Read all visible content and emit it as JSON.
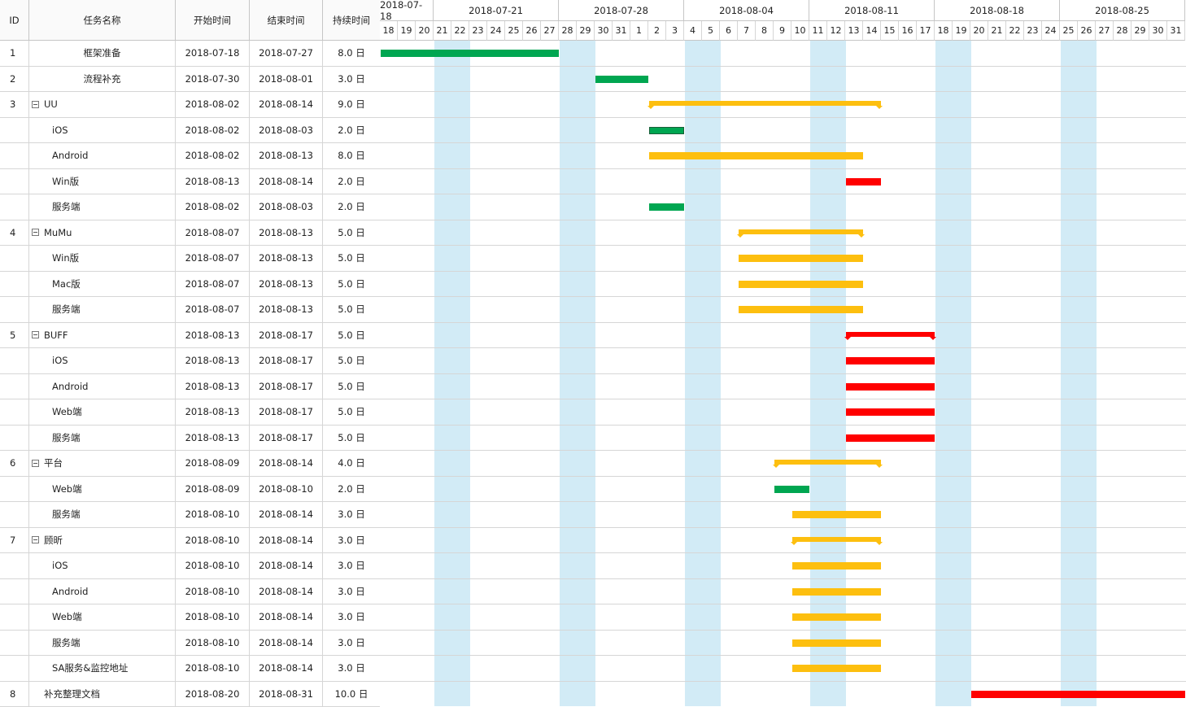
{
  "colors": {
    "green": "#00a651",
    "yellow": "#fdbf0f",
    "red": "#ff0000",
    "weekend": "#d2ebf6"
  },
  "header": {
    "id": "ID",
    "name": "任务名称",
    "start": "开始时间",
    "end": "结束时间",
    "duration": "持续时间"
  },
  "timeline": {
    "start_date": "2018-07-18",
    "weeks": [
      "2018-07-18",
      "2018-07-21",
      "2018-07-28",
      "2018-08-04",
      "2018-08-11",
      "2018-08-18",
      "2018-08-25"
    ],
    "days": [
      "18",
      "19",
      "20",
      "21",
      "22",
      "23",
      "24",
      "25",
      "26",
      "27",
      "28",
      "29",
      "30",
      "31",
      "1",
      "2",
      "3",
      "4",
      "5",
      "6",
      "7",
      "8",
      "9",
      "10",
      "11",
      "12",
      "13",
      "14",
      "15",
      "16",
      "17",
      "18",
      "19",
      "20",
      "21",
      "22",
      "23",
      "24",
      "25",
      "26",
      "27",
      "28",
      "29",
      "30",
      "31"
    ]
  },
  "tasks": [
    {
      "id": "1",
      "name": "框架准备",
      "start": "2018-07-18",
      "end": "2018-07-27",
      "duration": "8.0 日",
      "level": "top",
      "center": true,
      "summary": false,
      "color": "green"
    },
    {
      "id": "2",
      "name": "流程补充",
      "start": "2018-07-30",
      "end": "2018-08-01",
      "duration": "3.0 日",
      "level": "top",
      "center": true,
      "summary": false,
      "color": "green"
    },
    {
      "id": "3",
      "name": "UU",
      "start": "2018-08-02",
      "end": "2018-08-14",
      "duration": "9.0 日",
      "level": "top",
      "center": false,
      "summary": true,
      "color": "yellow"
    },
    {
      "id": "",
      "name": "iOS",
      "start": "2018-08-02",
      "end": "2018-08-03",
      "duration": "2.0 日",
      "level": "child",
      "summary": false,
      "color": "green",
      "outline": true
    },
    {
      "id": "",
      "name": "Android",
      "start": "2018-08-02",
      "end": "2018-08-13",
      "duration": "8.0 日",
      "level": "child",
      "summary": false,
      "color": "yellow"
    },
    {
      "id": "",
      "name": "Win版",
      "start": "2018-08-13",
      "end": "2018-08-14",
      "duration": "2.0 日",
      "level": "child",
      "summary": false,
      "color": "red"
    },
    {
      "id": "",
      "name": "服务端",
      "start": "2018-08-02",
      "end": "2018-08-03",
      "duration": "2.0 日",
      "level": "child",
      "summary": false,
      "color": "green"
    },
    {
      "id": "4",
      "name": "MuMu",
      "start": "2018-08-07",
      "end": "2018-08-13",
      "duration": "5.0 日",
      "level": "top",
      "center": false,
      "summary": true,
      "color": "yellow"
    },
    {
      "id": "",
      "name": "Win版",
      "start": "2018-08-07",
      "end": "2018-08-13",
      "duration": "5.0 日",
      "level": "child",
      "summary": false,
      "color": "yellow"
    },
    {
      "id": "",
      "name": "Mac版",
      "start": "2018-08-07",
      "end": "2018-08-13",
      "duration": "5.0 日",
      "level": "child",
      "summary": false,
      "color": "yellow"
    },
    {
      "id": "",
      "name": "服务端",
      "start": "2018-08-07",
      "end": "2018-08-13",
      "duration": "5.0 日",
      "level": "child",
      "summary": false,
      "color": "yellow"
    },
    {
      "id": "5",
      "name": "BUFF",
      "start": "2018-08-13",
      "end": "2018-08-17",
      "duration": "5.0 日",
      "level": "top",
      "center": false,
      "summary": true,
      "color": "red"
    },
    {
      "id": "",
      "name": "iOS",
      "start": "2018-08-13",
      "end": "2018-08-17",
      "duration": "5.0 日",
      "level": "child",
      "summary": false,
      "color": "red"
    },
    {
      "id": "",
      "name": "Android",
      "start": "2018-08-13",
      "end": "2018-08-17",
      "duration": "5.0 日",
      "level": "child",
      "summary": false,
      "color": "red"
    },
    {
      "id": "",
      "name": "Web端",
      "start": "2018-08-13",
      "end": "2018-08-17",
      "duration": "5.0 日",
      "level": "child",
      "summary": false,
      "color": "red"
    },
    {
      "id": "",
      "name": "服务端",
      "start": "2018-08-13",
      "end": "2018-08-17",
      "duration": "5.0 日",
      "level": "child",
      "summary": false,
      "color": "red"
    },
    {
      "id": "6",
      "name": "平台",
      "start": "2018-08-09",
      "end": "2018-08-14",
      "duration": "4.0 日",
      "level": "top",
      "center": false,
      "summary": true,
      "color": "yellow"
    },
    {
      "id": "",
      "name": "Web端",
      "start": "2018-08-09",
      "end": "2018-08-10",
      "duration": "2.0 日",
      "level": "child",
      "summary": false,
      "color": "green"
    },
    {
      "id": "",
      "name": "服务端",
      "start": "2018-08-10",
      "end": "2018-08-14",
      "duration": "3.0 日",
      "level": "child",
      "summary": false,
      "color": "yellow"
    },
    {
      "id": "7",
      "name": "顾昕",
      "start": "2018-08-10",
      "end": "2018-08-14",
      "duration": "3.0 日",
      "level": "top",
      "center": false,
      "summary": true,
      "color": "yellow"
    },
    {
      "id": "",
      "name": "iOS",
      "start": "2018-08-10",
      "end": "2018-08-14",
      "duration": "3.0 日",
      "level": "child",
      "summary": false,
      "color": "yellow"
    },
    {
      "id": "",
      "name": "Android",
      "start": "2018-08-10",
      "end": "2018-08-14",
      "duration": "3.0 日",
      "level": "child",
      "summary": false,
      "color": "yellow"
    },
    {
      "id": "",
      "name": "Web端",
      "start": "2018-08-10",
      "end": "2018-08-14",
      "duration": "3.0 日",
      "level": "child",
      "summary": false,
      "color": "yellow"
    },
    {
      "id": "",
      "name": "服务端",
      "start": "2018-08-10",
      "end": "2018-08-14",
      "duration": "3.0 日",
      "level": "child",
      "summary": false,
      "color": "yellow"
    },
    {
      "id": "",
      "name": "SA服务&监控地址",
      "start": "2018-08-10",
      "end": "2018-08-14",
      "duration": "3.0 日",
      "level": "child",
      "summary": false,
      "color": "yellow"
    },
    {
      "id": "8",
      "name": "补充整理文档",
      "start": "2018-08-20",
      "end": "2018-08-31",
      "duration": "10.0 日",
      "level": "top",
      "center": false,
      "summary": false,
      "color": "red"
    }
  ]
}
